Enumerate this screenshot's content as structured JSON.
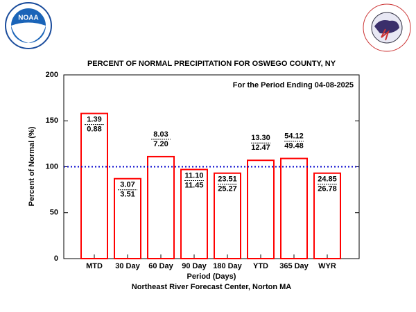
{
  "logos": {
    "left": "NOAA"
  },
  "chart_data": {
    "type": "bar",
    "title": "PERCENT OF NORMAL PRECIPITATION FOR OSWEGO COUNTY, NY",
    "subtitle": "For the Period Ending 04-08-2025",
    "x_label": "Period (Days)",
    "y_label": "Percent of Normal (%)",
    "footer": "Northeast River Forecast Center, Norton MA",
    "categories": [
      "MTD",
      "30 Day",
      "60 Day",
      "90 Day",
      "180 Day",
      "YTD",
      "365 Day",
      "WYR"
    ],
    "values": [
      158,
      87,
      111,
      97,
      93,
      107,
      109,
      93
    ],
    "observed": [
      "1.39",
      "3.07",
      "8.03",
      "11.10",
      "23.51",
      "13.30",
      "54.12",
      "24.85"
    ],
    "normal": [
      "0.88",
      "3.51",
      "7.20",
      "11.45",
      "25.27",
      "12.47",
      "49.48",
      "26.78"
    ],
    "color": "#ff0000",
    "reference_line": 100,
    "reference_color": "#0000cc",
    "ylim": [
      0,
      200
    ],
    "yticks": [
      0,
      50,
      100,
      150,
      200
    ]
  }
}
